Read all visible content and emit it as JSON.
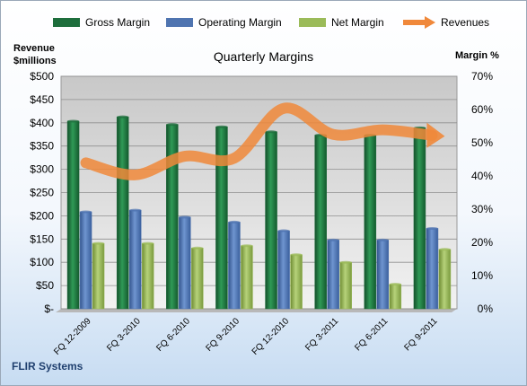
{
  "chart_data": {
    "type": "bar",
    "title": "Quarterly Margins",
    "ylabel_left_line1": "Revenue",
    "ylabel_left_line2": "$millions",
    "ylabel_right": "Margin %",
    "footer": "FLIR Systems",
    "categories": [
      "FQ 12-2009",
      "FQ 3-2010",
      "FQ 6-2010",
      "FQ 9-2010",
      "FQ 12-2010",
      "FQ 3-2011",
      "FQ 6-2011",
      "FQ 9-2011"
    ],
    "y_left_ticks": [
      "$-",
      "$50",
      "$100",
      "$150",
      "$200",
      "$250",
      "$300",
      "$350",
      "$400",
      "$450",
      "$500"
    ],
    "y_right_ticks": [
      "0%",
      "10%",
      "20%",
      "30%",
      "40%",
      "50%",
      "60%",
      "70%"
    ],
    "ylim_left": [
      0,
      500
    ],
    "ylim_right": [
      0,
      70
    ],
    "grid": true,
    "legend_position": "top",
    "series": [
      {
        "name": "Gross Margin",
        "axis": "right",
        "color": "#1e6e3c",
        "values": [
          56.5,
          57.8,
          55.5,
          54.8,
          53.3,
          52.3,
          52.3,
          54.5
        ]
      },
      {
        "name": "Operating Margin",
        "axis": "right",
        "color": "#4f74b0",
        "values": [
          29.2,
          29.7,
          27.6,
          26.1,
          23.5,
          20.7,
          20.7,
          24.2
        ]
      },
      {
        "name": "Net Margin",
        "axis": "right",
        "color": "#9bbb59",
        "values": [
          19.7,
          19.7,
          18.3,
          19.0,
          16.3,
          14.0,
          7.4,
          17.9
        ]
      }
    ],
    "revenue_series": {
      "name": "Revenues",
      "axis": "left",
      "color": "#f0883a",
      "values": [
        314,
        288,
        328,
        324,
        431,
        375,
        385,
        373
      ]
    }
  }
}
